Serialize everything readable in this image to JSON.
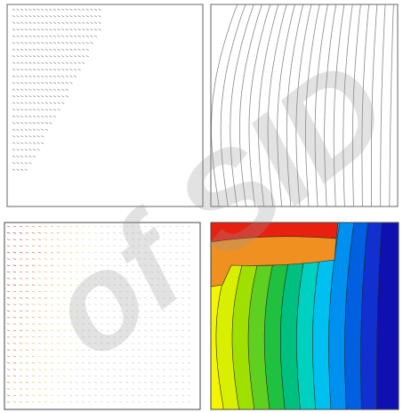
{
  "watermark": "of SID"
}
